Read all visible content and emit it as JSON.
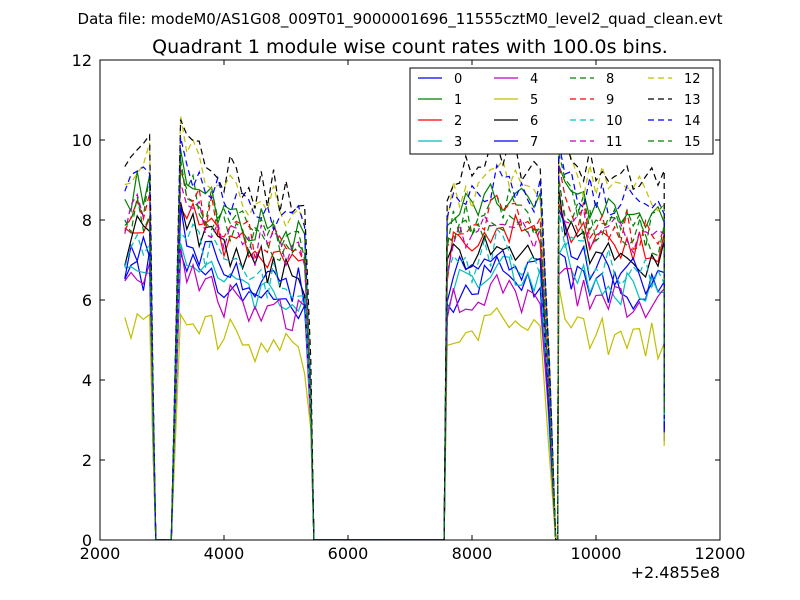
{
  "chart_data": {
    "type": "line",
    "suptitle": "Data file: modeM0/AS1G08_009T01_9000001696_11555cztM0_level2_quad_clean.evt",
    "title": "Quadrant 1 module wise count rates with 100.0s bins.",
    "xlabel": "",
    "ylabel": "",
    "x_offset_label": "+2.4855e8",
    "xlim": [
      2000,
      12000
    ],
    "ylim": [
      0,
      12
    ],
    "x_ticks": [
      2000,
      4000,
      6000,
      8000,
      10000,
      12000
    ],
    "y_ticks": [
      0,
      2,
      4,
      6,
      8,
      10,
      12
    ],
    "x_tick_labels": [
      "2000",
      "4000",
      "6000",
      "8000",
      "10000",
      "12000"
    ],
    "y_tick_labels": [
      "0",
      "2",
      "4",
      "6",
      "8",
      "10",
      "12"
    ],
    "legend_position": "upper-right",
    "legend_columns": 4,
    "segments": [
      {
        "start": 2400,
        "n": 5,
        "profile": [
          0.97,
          1.0,
          1.03,
          1.01,
          1.05
        ]
      },
      {
        "start": 3300,
        "n": 21,
        "profile": [
          1.12,
          1.08,
          1.04,
          1.02,
          0.99,
          1.0,
          0.97,
          0.95,
          0.96,
          0.93,
          0.94,
          0.92,
          0.91,
          0.93,
          0.9,
          0.92,
          0.89,
          0.9,
          0.88,
          0.9,
          0.86
        ]
      },
      {
        "start": 7600,
        "n": 16,
        "profile": [
          0.88,
          0.93,
          0.95,
          0.96,
          0.95,
          0.97,
          0.98,
          0.99,
          1.02,
          1.01,
          1.0,
          0.99,
          0.97,
          0.98,
          0.96,
          0.97
        ]
      },
      {
        "start": 9400,
        "n": 18,
        "profile": [
          1.12,
          1.05,
          1.01,
          0.99,
          0.98,
          0.97,
          0.96,
          0.97,
          0.95,
          0.96,
          0.94,
          0.95,
          0.93,
          0.94,
          0.92,
          0.94,
          0.93,
          0.95
        ]
      }
    ],
    "gaps": [
      {
        "from_x": 2700,
        "drop_x": 2850,
        "zero_from": 2900,
        "zero_to": 3150,
        "rise_x": 3300
      },
      {
        "from_x": 5300,
        "drop_x": 5400,
        "zero_from": 5450,
        "zero_to": 7550,
        "rise_x": 7600
      },
      {
        "from_x": 9100,
        "drop_x": 9250,
        "zero_from": 9350,
        "zero_to": 9380,
        "rise_x": 9400
      }
    ],
    "end_x": 11100,
    "end_fraction": 0.4,
    "series": [
      {
        "name": "0",
        "color": "#0000ff",
        "dash": "solid",
        "level": 6.6
      },
      {
        "name": "1",
        "color": "#008000",
        "dash": "solid",
        "level": 8.6
      },
      {
        "name": "2",
        "color": "#ff0000",
        "dash": "solid",
        "level": 7.8
      },
      {
        "name": "3",
        "color": "#00bfbf",
        "dash": "solid",
        "level": 6.7
      },
      {
        "name": "4",
        "color": "#bf00bf",
        "dash": "solid",
        "level": 6.3
      },
      {
        "name": "5",
        "color": "#bfbf00",
        "dash": "solid",
        "level": 5.3
      },
      {
        "name": "6",
        "color": "#000000",
        "dash": "solid",
        "level": 7.5
      },
      {
        "name": "7",
        "color": "#0000ff",
        "dash": "solid",
        "level": 7.1
      },
      {
        "name": "8",
        "color": "#008000",
        "dash": "dashed",
        "level": 8.4
      },
      {
        "name": "9",
        "color": "#ff0000",
        "dash": "dashed",
        "level": 8.2
      },
      {
        "name": "10",
        "color": "#00bfbf",
        "dash": "dashed",
        "level": 7.2
      },
      {
        "name": "11",
        "color": "#bf00bf",
        "dash": "dashed",
        "level": 8.0
      },
      {
        "name": "12",
        "color": "#bfbf00",
        "dash": "dashed",
        "level": 9.2
      },
      {
        "name": "13",
        "color": "#000000",
        "dash": "dashed",
        "level": 9.6
      },
      {
        "name": "14",
        "color": "#0000ff",
        "dash": "dashed",
        "level": 8.9
      },
      {
        "name": "15",
        "color": "#008000",
        "dash": "dashed",
        "level": 8.1
      }
    ]
  }
}
